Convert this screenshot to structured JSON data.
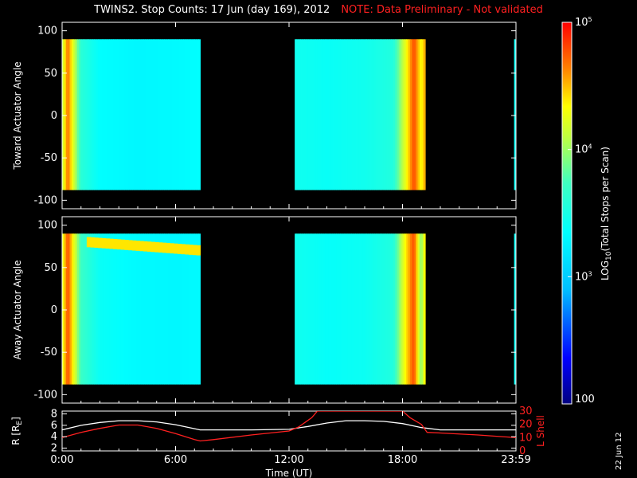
{
  "title": {
    "main": "TWINS2. Stop Counts: 17 Jun (day 169), 2012",
    "note": "NOTE: Data Preliminary - Not validated"
  },
  "date_stamp": "22 Jun 12",
  "colors": {
    "background": "#000000",
    "axes": "#ffffff",
    "note_red": "#ff2020",
    "r_line": "#ffffff",
    "lshell_line": "#ff2020"
  },
  "chart_data": [
    {
      "type": "heatmap",
      "name": "toward",
      "ylabel": "Toward Actuator Angle",
      "xlim": [
        0,
        24
      ],
      "ylim": [
        -110,
        110
      ],
      "yticks": [
        -100,
        -50,
        0,
        50,
        100
      ],
      "data_range_y": [
        -88,
        90
      ],
      "data_blocks": [
        {
          "t_start": 0.0,
          "t_end": 7.3
        },
        {
          "t_start": 12.3,
          "t_end": 19.2
        },
        {
          "t_start": 23.9,
          "t_end": 24.0
        }
      ],
      "log10_counts_profile": [
        {
          "t": 0.0,
          "v": 4.1
        },
        {
          "t": 0.3,
          "v": 4.7
        },
        {
          "t": 0.6,
          "v": 4.2
        },
        {
          "t": 1.0,
          "v": 3.6
        },
        {
          "t": 2.0,
          "v": 3.35
        },
        {
          "t": 4.0,
          "v": 3.3
        },
        {
          "t": 6.0,
          "v": 3.32
        },
        {
          "t": 7.3,
          "v": 3.35
        },
        {
          "t": 12.3,
          "v": 3.45
        },
        {
          "t": 14.0,
          "v": 3.4
        },
        {
          "t": 16.0,
          "v": 3.45
        },
        {
          "t": 17.5,
          "v": 3.55
        },
        {
          "t": 18.2,
          "v": 4.3
        },
        {
          "t": 18.6,
          "v": 4.8
        },
        {
          "t": 19.0,
          "v": 4.3
        },
        {
          "t": 19.2,
          "v": 4.6
        },
        {
          "t": 23.9,
          "v": 3.4
        }
      ]
    },
    {
      "type": "heatmap",
      "name": "away",
      "ylabel": "Away Actuator Angle",
      "xlim": [
        0,
        24
      ],
      "ylim": [
        -110,
        110
      ],
      "yticks": [
        -100,
        -50,
        0,
        50,
        100
      ],
      "data_range_y": [
        -88,
        90
      ],
      "data_blocks": [
        {
          "t_start": 0.0,
          "t_end": 7.3
        },
        {
          "t_start": 12.3,
          "t_end": 19.2
        },
        {
          "t_start": 23.9,
          "t_end": 24.0
        }
      ],
      "log10_counts_profile": [
        {
          "t": 0.0,
          "v": 4.2
        },
        {
          "t": 0.3,
          "v": 4.8
        },
        {
          "t": 0.6,
          "v": 4.3
        },
        {
          "t": 1.0,
          "v": 3.7
        },
        {
          "t": 2.0,
          "v": 3.4
        },
        {
          "t": 4.0,
          "v": 3.32
        },
        {
          "t": 6.0,
          "v": 3.3
        },
        {
          "t": 7.3,
          "v": 3.32
        },
        {
          "t": 12.3,
          "v": 3.45
        },
        {
          "t": 14.0,
          "v": 3.38
        },
        {
          "t": 16.0,
          "v": 3.42
        },
        {
          "t": 17.5,
          "v": 3.55
        },
        {
          "t": 18.2,
          "v": 4.4
        },
        {
          "t": 18.6,
          "v": 4.8
        },
        {
          "t": 19.0,
          "v": 3.9
        },
        {
          "t": 19.2,
          "v": 4.5
        },
        {
          "t": 23.9,
          "v": 3.4
        }
      ],
      "band": {
        "t_start": 1.3,
        "t_end": 7.3,
        "angle_start": 80,
        "angle_end": 70,
        "v": 4.4
      }
    },
    {
      "type": "line",
      "name": "orbit",
      "ylabel": "R [R",
      "ylabel_sub": "E",
      "ylabel_close": "]",
      "y2label": "L Shell",
      "xlabel": "Time (UT)",
      "xlim": [
        0,
        24
      ],
      "ylim": [
        1.5,
        8.5
      ],
      "yticks": [
        2,
        4,
        6,
        8
      ],
      "y2lim": [
        0,
        30
      ],
      "y2ticks": [
        0,
        10,
        20,
        30
      ],
      "xtick_labels": [
        "0:00",
        "6:00",
        "12:00",
        "18:00",
        "23:59"
      ],
      "xtick_values": [
        0,
        6,
        12,
        18,
        24
      ],
      "series": [
        {
          "key": "R",
          "x": [
            0,
            1,
            2,
            3,
            4,
            5,
            6,
            7,
            7.3,
            8,
            10,
            12,
            13,
            14,
            15,
            16,
            17,
            18,
            19,
            20,
            22,
            24
          ],
          "y": [
            5.2,
            6.0,
            6.5,
            6.8,
            6.8,
            6.6,
            6.1,
            5.4,
            5.2,
            5.2,
            5.2,
            5.3,
            5.8,
            6.4,
            6.8,
            6.8,
            6.7,
            6.3,
            5.6,
            5.2,
            5.2,
            5.2
          ]
        },
        {
          "key": "L",
          "axis": "right",
          "x": [
            0,
            1,
            2,
            3,
            4,
            5,
            6,
            7,
            7.3,
            8,
            10,
            12,
            12.5,
            13.2,
            13.5,
            18,
            18.4,
            19,
            19.3,
            20,
            22,
            24
          ],
          "y": [
            10,
            14,
            17,
            19.5,
            19.5,
            17,
            13,
            8.5,
            7.5,
            8.5,
            12,
            15,
            18,
            25,
            30,
            30,
            25,
            20,
            14,
            13.5,
            12,
            10
          ]
        }
      ]
    }
  ],
  "colorbar": {
    "label_pre": "LOG",
    "label_sub": "10",
    "label_post": "(Total Stops per Scan)",
    "range_log10": [
      2,
      5
    ],
    "tick_labels": [
      {
        "base": "10",
        "exp": "5",
        "v": 5
      },
      {
        "base": "10",
        "exp": "4",
        "v": 4
      },
      {
        "base": "10",
        "exp": "3",
        "v": 3
      }
    ],
    "bottom_label": "100"
  }
}
